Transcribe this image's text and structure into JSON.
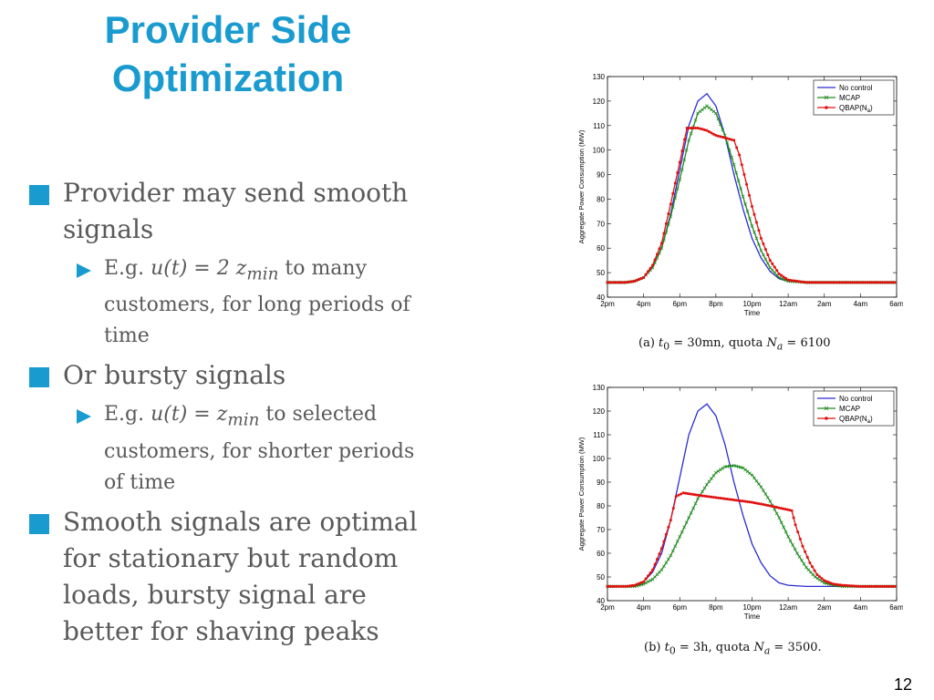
{
  "slide": {
    "title_line1": "Provider Side",
    "title_line2": "Optimization",
    "page_number": "12",
    "bullets": [
      {
        "text1": "Provider may send smooth",
        "text2": "signals"
      },
      {
        "prefix": "E.g.",
        "math": "u(t) = 2 z",
        "sub": "min",
        "suffix": " to many",
        "line2": "customers, for long periods of",
        "line3": "time"
      },
      {
        "text1": "Or bursty signals"
      },
      {
        "prefix": "E.g.",
        "math": "u(t) = z",
        "sub": "min",
        "suffix": " to selected",
        "line2": "customers, for shorter  periods",
        "line3": "of time"
      },
      {
        "text1": "Smooth signals are optimal",
        "text2": "for stationary but random",
        "text3": "loads, bursty signal are",
        "text4": "better for shaving peaks"
      }
    ]
  },
  "chart_data": [
    {
      "type": "line",
      "xlabel": "Time",
      "ylabel": "Aggregate Power Consumption (MW)",
      "ylim": [
        40,
        130
      ],
      "yticks": [
        "40",
        "50",
        "60",
        "70",
        "80",
        "90",
        "100",
        "110",
        "120",
        "130"
      ],
      "xticks": [
        "2pm",
        "4pm",
        "6pm",
        "8pm",
        "10pm",
        "12am",
        "2am",
        "4am",
        "6am"
      ],
      "legend_position": "top-right",
      "caption": {
        "pre": "(a) ",
        "t0": "t",
        "t0sub": "0",
        "mid": " = 30mn,  quota ",
        "na": "N",
        "nasub": "a",
        "post": " = 6100"
      },
      "series": [
        {
          "name": "No control",
          "color": "#2b2bd4",
          "marker": "none",
          "points": [
            [
              0,
              46
            ],
            [
              1,
              46
            ],
            [
              1.5,
              46.5
            ],
            [
              2,
              48
            ],
            [
              2.5,
              52
            ],
            [
              3,
              60
            ],
            [
              3.5,
              74
            ],
            [
              4,
              92
            ],
            [
              4.5,
              110
            ],
            [
              5,
              120
            ],
            [
              5.5,
              123
            ],
            [
              6,
              118
            ],
            [
              6.5,
              106
            ],
            [
              7,
              90
            ],
            [
              7.5,
              76
            ],
            [
              8,
              64
            ],
            [
              8.5,
              56
            ],
            [
              9,
              50.5
            ],
            [
              9.5,
              47.5
            ],
            [
              10,
              46.5
            ],
            [
              11,
              46
            ],
            [
              16,
              46
            ]
          ]
        },
        {
          "name": "MCAP",
          "color": "#1f8a1f",
          "marker": "x",
          "points": [
            [
              0,
              46
            ],
            [
              1,
              46
            ],
            [
              1.5,
              46.5
            ],
            [
              2,
              48
            ],
            [
              2.5,
              52
            ],
            [
              3,
              60
            ],
            [
              3.5,
              73
            ],
            [
              4,
              88
            ],
            [
              4.5,
              104
            ],
            [
              5,
              115
            ],
            [
              5.5,
              118
            ],
            [
              6,
              115
            ],
            [
              6.5,
              106
            ],
            [
              7,
              94
            ],
            [
              7.5,
              81
            ],
            [
              8,
              69
            ],
            [
              8.5,
              59
            ],
            [
              9,
              52
            ],
            [
              9.5,
              48
            ],
            [
              10,
              46.5
            ],
            [
              11,
              46
            ],
            [
              16,
              46
            ]
          ]
        },
        {
          "name": "QBAP(N_a)",
          "color": "#e01010",
          "marker": "dot",
          "points": [
            [
              0,
              46
            ],
            [
              1,
              46
            ],
            [
              1.5,
              46.5
            ],
            [
              2,
              48
            ],
            [
              2.5,
              53
            ],
            [
              3,
              62
            ],
            [
              3.5,
              78
            ],
            [
              4,
              95
            ],
            [
              4.4,
              109
            ],
            [
              5,
              109
            ],
            [
              5.5,
              108
            ],
            [
              6,
              106
            ],
            [
              6.5,
              105
            ],
            [
              7,
              104
            ],
            [
              7.3,
              98
            ],
            [
              7.7,
              86
            ],
            [
              8,
              77
            ],
            [
              8.5,
              64
            ],
            [
              9,
              55
            ],
            [
              9.5,
              49.5
            ],
            [
              10,
              47
            ],
            [
              11,
              46
            ],
            [
              16,
              46
            ]
          ]
        }
      ]
    },
    {
      "type": "line",
      "xlabel": "Time",
      "ylabel": "Aggregate Power Consumption (MW)",
      "ylim": [
        40,
        130
      ],
      "yticks": [
        "40",
        "50",
        "60",
        "70",
        "80",
        "90",
        "100",
        "110",
        "120",
        "130"
      ],
      "xticks": [
        "2pm",
        "4pm",
        "6pm",
        "8pm",
        "10pm",
        "12am",
        "2am",
        "4am",
        "6am"
      ],
      "legend_position": "top-right",
      "caption": {
        "pre": "(b) ",
        "t0": "t",
        "t0sub": "0",
        "mid": " = 3h,  quota ",
        "na": "N",
        "nasub": "a",
        "post": " = 3500."
      },
      "series": [
        {
          "name": "No control",
          "color": "#2b2bd4",
          "marker": "none",
          "points": [
            [
              0,
              46
            ],
            [
              1,
              46
            ],
            [
              1.5,
              46.5
            ],
            [
              2,
              48
            ],
            [
              2.5,
              52
            ],
            [
              3,
              60
            ],
            [
              3.5,
              74
            ],
            [
              4,
              92
            ],
            [
              4.5,
              110
            ],
            [
              5,
              120
            ],
            [
              5.5,
              123
            ],
            [
              6,
              118
            ],
            [
              6.5,
              106
            ],
            [
              7,
              90
            ],
            [
              7.5,
              76
            ],
            [
              8,
              64
            ],
            [
              8.5,
              56
            ],
            [
              9,
              50.5
            ],
            [
              9.5,
              47.5
            ],
            [
              10,
              46.5
            ],
            [
              11,
              46
            ],
            [
              16,
              46
            ]
          ]
        },
        {
          "name": "MCAP",
          "color": "#1f8a1f",
          "marker": "x",
          "points": [
            [
              0,
              46
            ],
            [
              1.5,
              46
            ],
            [
              2,
              47
            ],
            [
              2.5,
              49
            ],
            [
              3,
              53
            ],
            [
              3.5,
              59
            ],
            [
              4,
              67
            ],
            [
              4.5,
              75
            ],
            [
              5,
              83
            ],
            [
              5.5,
              89
            ],
            [
              6,
              94
            ],
            [
              6.5,
              96.5
            ],
            [
              7,
              97
            ],
            [
              7.5,
              96
            ],
            [
              8,
              93
            ],
            [
              8.5,
              88
            ],
            [
              9,
              82
            ],
            [
              9.5,
              75
            ],
            [
              10,
              67
            ],
            [
              10.5,
              60
            ],
            [
              11,
              54
            ],
            [
              11.5,
              50
            ],
            [
              12,
              47.5
            ],
            [
              12.5,
              46.5
            ],
            [
              13,
              46
            ],
            [
              16,
              46
            ]
          ]
        },
        {
          "name": "QBAP(N_a)",
          "color": "#e01010",
          "marker": "dot",
          "points": [
            [
              0,
              46
            ],
            [
              1,
              46
            ],
            [
              1.5,
              46.5
            ],
            [
              2,
              48
            ],
            [
              2.5,
              53
            ],
            [
              3,
              62
            ],
            [
              3.5,
              74
            ],
            [
              3.8,
              84
            ],
            [
              4.2,
              85.5
            ],
            [
              5,
              84.5
            ],
            [
              6,
              83.5
            ],
            [
              7,
              82.5
            ],
            [
              8,
              81.5
            ],
            [
              9,
              80
            ],
            [
              10.2,
              78
            ],
            [
              10.4,
              72
            ],
            [
              10.8,
              63
            ],
            [
              11.2,
              56
            ],
            [
              11.6,
              51
            ],
            [
              12,
              48.5
            ],
            [
              12.5,
              47
            ],
            [
              13,
              46.5
            ],
            [
              14,
              46
            ],
            [
              16,
              46
            ]
          ]
        }
      ]
    }
  ]
}
